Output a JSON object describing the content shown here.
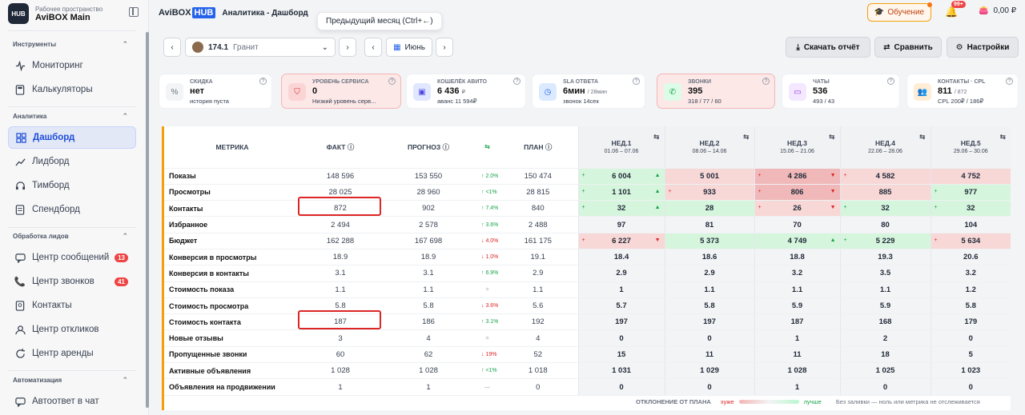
{
  "workspace": {
    "subtitle": "Рабочее пространство",
    "name": "AviBOX Main",
    "logo": "HUB"
  },
  "sections": {
    "tools": "Инструменты",
    "analytics": "Аналитика",
    "leads": "Обработка лидов",
    "automation": "Автоматизация"
  },
  "nav": {
    "monitoring": "Мониторинг",
    "calculators": "Калькуляторы",
    "dashboard": "Дашборд",
    "leadboard": "Лидборд",
    "teamboard": "Тимборд",
    "spendboard": "Спендборд",
    "messages": "Центр сообщений",
    "messages_badge": "13",
    "calls": "Центр звонков",
    "calls_badge": "41",
    "contacts": "Контакты",
    "responses": "Центр откликов",
    "rent": "Центр аренды",
    "autoreply": "Автоответ в чат"
  },
  "header": {
    "brand": "AviBOX",
    "brand_hub": "HUB",
    "title": "Аналитика - Дашборд",
    "tooltip": "Предыдущий месяц (Ctrl+←)",
    "learn": "Обучение",
    "bell_badge": "99+",
    "balance": "0,00 ₽"
  },
  "controls": {
    "account_id": "174.1",
    "account_name": "Гранит",
    "month": "Июнь",
    "download": "Скачать отчёт",
    "compare": "Сравнить",
    "settings": "Настройки"
  },
  "cards": [
    {
      "label": "СКИДКА",
      "value": "нет",
      "sub": "история пуста",
      "icon": "percent-icon"
    },
    {
      "label": "УРОВЕНЬ СЕРВИСА",
      "value": "0",
      "sub": "Низкий уровень серв...",
      "icon": "shield-icon"
    },
    {
      "label": "КОШЕЛЁК АВИТО",
      "value": "6 436",
      "unit": "₽",
      "sub": "аванс 11 594₽",
      "icon": "wallet-icon"
    },
    {
      "label": "SLA ОТВЕТА",
      "value": "6мин",
      "unit": "/ 28мин",
      "sub": "звонок 14сек",
      "icon": "clock-icon"
    },
    {
      "label": "ЗВОНКИ",
      "value": "395",
      "sub": "318 / 77 / 60",
      "icon": "phone-icon"
    },
    {
      "label": "ЧАТЫ",
      "value": "536",
      "sub": "493 / 43",
      "icon": "chat-icon"
    },
    {
      "label": "КОНТАКТЫ · CPL",
      "value": "811",
      "unit": "/ 872",
      "sub": "CPL 200₽ / 186₽",
      "icon": "users-icon"
    }
  ],
  "table": {
    "headers": {
      "metric": "МЕТРИКА",
      "fact": "ФАКТ",
      "forecast": "ПРОГНОЗ",
      "plan": "ПЛАН"
    },
    "weeks": [
      {
        "name": "НЕД.1",
        "dates": "01.06 – 07.06"
      },
      {
        "name": "НЕД.2",
        "dates": "08.06 – 14.06"
      },
      {
        "name": "НЕД.3",
        "dates": "15.06 – 21.06"
      },
      {
        "name": "НЕД.4",
        "dates": "22.06 – 28.06"
      },
      {
        "name": "НЕД.5",
        "dates": "29.06 – 30.06"
      }
    ],
    "rows": [
      {
        "m": "Показы",
        "f": "148 596",
        "p": "153 550",
        "d": "↑ 2.0%",
        "dc": "up",
        "pl": "150 474",
        "w": [
          [
            "6 004",
            "g",
            "+",
            "👍"
          ],
          [
            "5 001",
            "r",
            "",
            ""
          ],
          [
            "4 286",
            "rr",
            "+",
            "👎"
          ],
          [
            "4 582",
            "r",
            "+",
            ""
          ],
          [
            "4 752",
            "r",
            "",
            ""
          ]
        ]
      },
      {
        "m": "Просмотры",
        "f": "28 025",
        "p": "28 960",
        "d": "↑ <1%",
        "dc": "up",
        "pl": "28 815",
        "w": [
          [
            "1 101",
            "g",
            "+",
            "👍"
          ],
          [
            "933",
            "r",
            "+",
            ""
          ],
          [
            "806",
            "rr",
            "+",
            "👎"
          ],
          [
            "885",
            "r",
            "",
            ""
          ],
          [
            "977",
            "g",
            "+",
            ""
          ]
        ]
      },
      {
        "m": "Контакты",
        "f": "872",
        "p": "902",
        "d": "↑ 7.4%",
        "dc": "up",
        "pl": "840",
        "w": [
          [
            "32",
            "g",
            "+",
            "👍"
          ],
          [
            "28",
            "g",
            "",
            ""
          ],
          [
            "26",
            "r",
            "+",
            "👎"
          ],
          [
            "32",
            "g",
            "+",
            ""
          ],
          [
            "32",
            "g",
            "+",
            ""
          ]
        ]
      },
      {
        "m": "Избранное",
        "f": "2 494",
        "p": "2 578",
        "d": "↑ 3.6%",
        "dc": "up",
        "pl": "2 488",
        "w": [
          [
            "97",
            "",
            "",
            " "
          ],
          [
            "81",
            "",
            "",
            ""
          ],
          [
            "70",
            "",
            "",
            ""
          ],
          [
            "80",
            "",
            "",
            ""
          ],
          [
            "104",
            "",
            "",
            ""
          ]
        ]
      },
      {
        "m": "Бюджет",
        "f": "162 288",
        "p": "167 698",
        "d": "↓ 4.0%",
        "dc": "dn",
        "pl": "161 175",
        "w": [
          [
            "6 227",
            "r",
            "+",
            "👎"
          ],
          [
            "5 373",
            "g",
            "",
            ""
          ],
          [
            "4 749",
            "g",
            "",
            "👍"
          ],
          [
            "5 229",
            "g",
            "+",
            ""
          ],
          [
            "5 634",
            "r",
            "+",
            ""
          ]
        ]
      },
      {
        "m": "Конверсия в просмотры",
        "f": "18.9",
        "p": "18.9",
        "d": "↓ 1.0%",
        "dc": "dn",
        "pl": "19.1",
        "w": [
          [
            "18.4",
            "",
            "",
            ""
          ],
          [
            "18.6",
            "",
            "",
            ""
          ],
          [
            "18.8",
            "",
            "",
            ""
          ],
          [
            "19.3",
            "",
            "",
            ""
          ],
          [
            "20.6",
            "",
            "",
            ""
          ]
        ]
      },
      {
        "m": "Конверсия в контакты",
        "f": "3.1",
        "p": "3.1",
        "d": "↑ 6.9%",
        "dc": "up",
        "pl": "2.9",
        "w": [
          [
            "2.9",
            "",
            "",
            ""
          ],
          [
            "2.9",
            "",
            "",
            ""
          ],
          [
            "3.2",
            "",
            "",
            ""
          ],
          [
            "3.5",
            "",
            "",
            ""
          ],
          [
            "3.2",
            "",
            "",
            ""
          ]
        ]
      },
      {
        "m": "Стоимость показа",
        "f": "1.1",
        "p": "1.1",
        "d": "=",
        "dc": "eq",
        "pl": "1.1",
        "w": [
          [
            "1",
            "",
            "",
            ""
          ],
          [
            "1.1",
            "",
            "",
            ""
          ],
          [
            "1.1",
            "",
            "",
            ""
          ],
          [
            "1.1",
            "",
            "",
            ""
          ],
          [
            "1.2",
            "",
            "",
            ""
          ]
        ]
      },
      {
        "m": "Стоимость просмотра",
        "f": "5.8",
        "p": "5.8",
        "d": "↓ 3.6%",
        "dc": "dn",
        "pl": "5.6",
        "w": [
          [
            "5.7",
            "",
            "",
            ""
          ],
          [
            "5.8",
            "",
            "",
            ""
          ],
          [
            "5.9",
            "",
            "",
            ""
          ],
          [
            "5.9",
            "",
            "",
            ""
          ],
          [
            "5.8",
            "",
            "",
            ""
          ]
        ]
      },
      {
        "m": "Стоимость контакта",
        "f": "187",
        "p": "186",
        "d": "↑ 3.1%",
        "dc": "up",
        "pl": "192",
        "w": [
          [
            "197",
            "",
            "",
            ""
          ],
          [
            "197",
            "",
            "",
            ""
          ],
          [
            "187",
            "",
            "",
            ""
          ],
          [
            "168",
            "",
            "",
            ""
          ],
          [
            "179",
            "",
            "",
            ""
          ]
        ]
      },
      {
        "m": "Новые отзывы",
        "f": "3",
        "p": "4",
        "d": "=",
        "dc": "eq",
        "pl": "4",
        "w": [
          [
            "0",
            "",
            "",
            ""
          ],
          [
            "0",
            "",
            "",
            ""
          ],
          [
            "1",
            "",
            "",
            ""
          ],
          [
            "2",
            "",
            "",
            ""
          ],
          [
            "0",
            "",
            "",
            ""
          ]
        ]
      },
      {
        "m": "Пропущенные звонки",
        "f": "60",
        "p": "62",
        "d": "↓ 19%",
        "dc": "dn",
        "pl": "52",
        "w": [
          [
            "15",
            "",
            "",
            ""
          ],
          [
            "11",
            "",
            "",
            ""
          ],
          [
            "11",
            "",
            "",
            ""
          ],
          [
            "18",
            "",
            "",
            ""
          ],
          [
            "5",
            "",
            "",
            ""
          ]
        ]
      },
      {
        "m": "Активные объявления",
        "f": "1 028",
        "p": "1 028",
        "d": "↑ <1%",
        "dc": "up",
        "pl": "1 018",
        "w": [
          [
            "1 031",
            "",
            "",
            ""
          ],
          [
            "1 029",
            "",
            "",
            ""
          ],
          [
            "1 028",
            "",
            "",
            ""
          ],
          [
            "1 025",
            "",
            "",
            ""
          ],
          [
            "1 023",
            "",
            "",
            ""
          ]
        ]
      },
      {
        "m": "Объявления на продвижении",
        "f": "1",
        "p": "1",
        "d": "—",
        "dc": "eq",
        "pl": "0",
        "w": [
          [
            "0",
            "",
            "",
            ""
          ],
          [
            "0",
            "",
            "",
            ""
          ],
          [
            "1",
            "",
            "",
            ""
          ],
          [
            "0",
            "",
            "",
            ""
          ],
          [
            "0",
            "",
            "",
            ""
          ]
        ]
      }
    ]
  },
  "legend": {
    "title": "ОТКЛОНЕНИЕ ОТ ПЛАНА",
    "worse": "хуже",
    "better": "лучше",
    "note": "Без заливки — ноль или метрика не отслеживается"
  }
}
